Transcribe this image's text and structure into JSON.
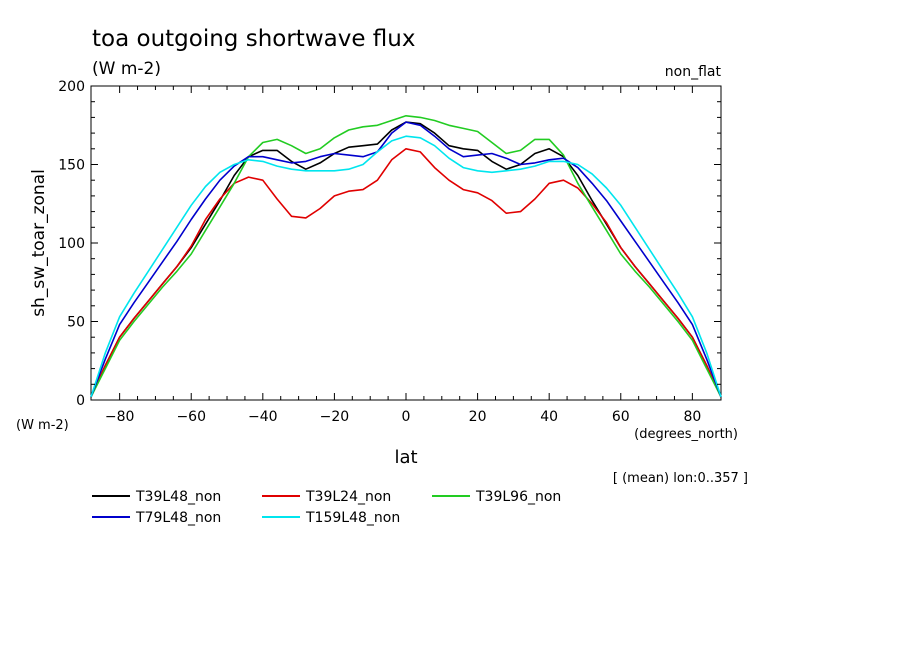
{
  "chart_data": {
    "type": "line",
    "title": "toa outgoing shortwave flux",
    "subtitle": "(W m-2)",
    "run_label": "non_flat",
    "ylabel": "sh_sw_toar_zonal",
    "y_units": "(W m-2)",
    "xlabel": "lat",
    "x_units": "(degrees_north)",
    "note": "[ (mean) lon:0..357 ]",
    "xlim": [
      -88,
      88
    ],
    "ylim": [
      0,
      200
    ],
    "xticks": [
      -80,
      -60,
      -40,
      -20,
      0,
      20,
      40,
      60,
      80
    ],
    "yticks": [
      0,
      50,
      100,
      150,
      200
    ],
    "x": [
      -88,
      -84,
      -80,
      -76,
      -72,
      -68,
      -64,
      -60,
      -56,
      -52,
      -48,
      -44,
      -40,
      -36,
      -32,
      -28,
      -24,
      -20,
      -16,
      -12,
      -8,
      -4,
      0,
      4,
      8,
      12,
      16,
      20,
      24,
      28,
      32,
      36,
      40,
      44,
      48,
      52,
      56,
      60,
      64,
      68,
      72,
      76,
      80,
      84,
      88
    ],
    "series": [
      {
        "name": "T39L48_non",
        "color": "#000000",
        "values": [
          2,
          22,
          40,
          52,
          63,
          74,
          85,
          97,
          112,
          127,
          143,
          155,
          159,
          159,
          152,
          147,
          151,
          157,
          161,
          162,
          163,
          172,
          177,
          176,
          170,
          162,
          160,
          159,
          152,
          147,
          150,
          157,
          160,
          155,
          143,
          127,
          112,
          97,
          85,
          74,
          63,
          52,
          40,
          22,
          2
        ]
      },
      {
        "name": "T39L24_non",
        "color": "#e00000",
        "values": [
          2,
          22,
          40,
          52,
          63,
          74,
          85,
          98,
          115,
          128,
          138,
          142,
          140,
          128,
          117,
          116,
          122,
          130,
          133,
          134,
          140,
          153,
          160,
          158,
          148,
          140,
          134,
          132,
          127,
          119,
          120,
          128,
          138,
          140,
          135,
          125,
          113,
          97,
          85,
          74,
          63,
          52,
          40,
          22,
          2
        ]
      },
      {
        "name": "T39L96_non",
        "color": "#22cc22",
        "values": [
          2,
          20,
          38,
          50,
          61,
          72,
          82,
          93,
          108,
          123,
          138,
          155,
          164,
          166,
          162,
          157,
          160,
          167,
          172,
          174,
          175,
          178,
          181,
          180,
          178,
          175,
          173,
          171,
          164,
          157,
          159,
          166,
          166,
          156,
          138,
          123,
          108,
          93,
          82,
          72,
          61,
          50,
          38,
          20,
          2
        ]
      },
      {
        "name": "T79L48_non",
        "color": "#0000cc",
        "values": [
          2,
          26,
          48,
          62,
          75,
          88,
          101,
          115,
          128,
          140,
          149,
          155,
          155,
          153,
          151,
          152,
          155,
          157,
          156,
          155,
          158,
          170,
          177,
          175,
          168,
          160,
          155,
          156,
          157,
          154,
          150,
          151,
          153,
          154,
          148,
          138,
          127,
          114,
          101,
          88,
          75,
          62,
          48,
          26,
          2
        ]
      },
      {
        "name": "T159L48_non",
        "color": "#00e5ee",
        "values": [
          2,
          30,
          53,
          68,
          82,
          96,
          110,
          124,
          136,
          145,
          150,
          153,
          152,
          149,
          147,
          146,
          146,
          146,
          147,
          150,
          158,
          165,
          168,
          167,
          162,
          154,
          148,
          146,
          145,
          146,
          147,
          149,
          152,
          152,
          150,
          144,
          135,
          124,
          110,
          96,
          82,
          68,
          53,
          30,
          2
        ]
      }
    ]
  }
}
